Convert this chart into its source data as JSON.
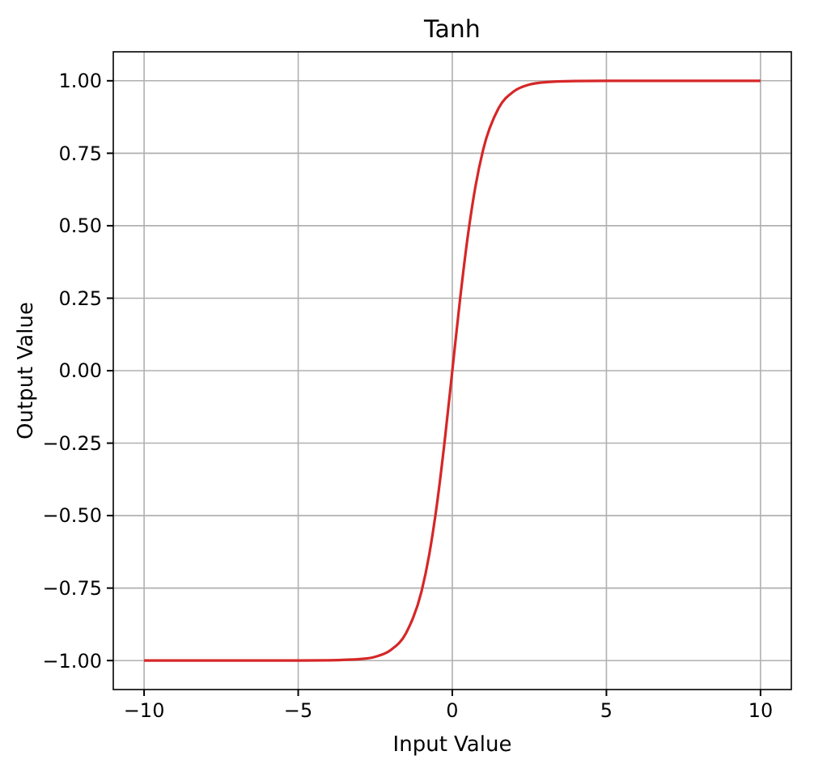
{
  "chart_data": {
    "type": "line",
    "title": "Tanh",
    "xlabel": "Input Value",
    "ylabel": "Output Value",
    "series": [
      {
        "color": "#d62728",
        "x": [
          -10,
          -5,
          -4,
          -3,
          -2.5,
          -2,
          -1.5,
          -1,
          -0.75,
          -0.5,
          -0.25,
          0,
          0.25,
          0.5,
          0.75,
          1,
          1.5,
          2,
          2.5,
          3,
          4,
          5,
          10
        ],
        "values": [
          -1,
          -1,
          -0.999,
          -0.995,
          -0.987,
          -0.964,
          -0.905,
          -0.762,
          -0.635,
          -0.462,
          -0.245,
          0,
          0.245,
          0.462,
          0.635,
          0.762,
          0.905,
          0.964,
          0.987,
          0.995,
          0.999,
          1,
          1
        ]
      }
    ],
    "xlim": [
      -11,
      11
    ],
    "ylim": [
      -1.1,
      1.1
    ],
    "xticks": [
      -10,
      -5,
      0,
      5,
      10
    ],
    "yticks": [
      {
        "value": -1,
        "label": "−1.00"
      },
      {
        "value": -0.75,
        "label": "−0.75"
      },
      {
        "value": -0.5,
        "label": "−0.50"
      },
      {
        "value": -0.25,
        "label": "−0.25"
      },
      {
        "value": 0,
        "label": "0.00"
      },
      {
        "value": 0.25,
        "label": "0.25"
      },
      {
        "value": 0.5,
        "label": "0.50"
      },
      {
        "value": 0.75,
        "label": "0.75"
      },
      {
        "value": 1,
        "label": "1.00"
      }
    ],
    "grid": true,
    "marker": "none",
    "line_style": "solid"
  }
}
